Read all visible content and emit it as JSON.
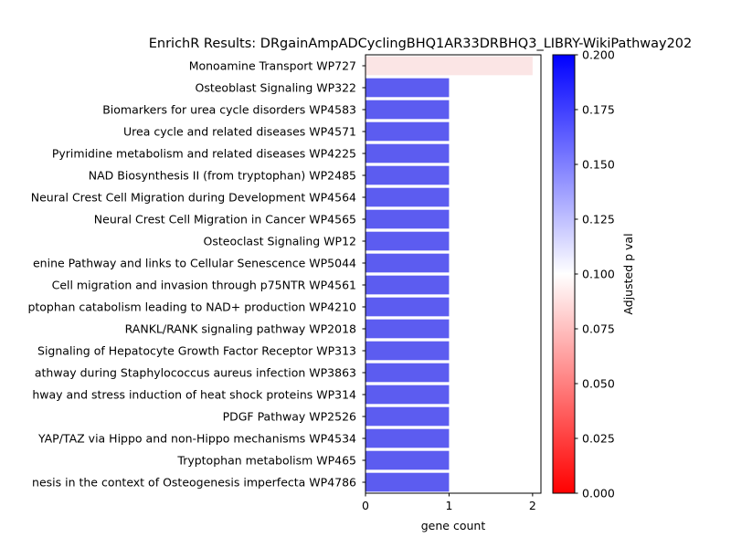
{
  "chart_data": {
    "type": "bar",
    "orientation": "horizontal",
    "title": "EnrichR Results: DRgainAmpADCyclingBHQ1AR33DRBHQ3_LIBRY-WikiPathway202",
    "xlabel": "gene count",
    "ylabel": "",
    "xlim": [
      0,
      2.1
    ],
    "x_ticks": [
      "0",
      "1",
      "2"
    ],
    "categories": [
      "Monoamine Transport WP727",
      "Osteoblast Signaling WP322",
      "Biomarkers for urea cycle disorders WP4583",
      "Urea cycle and related diseases WP4571",
      "Pyrimidine metabolism and related diseases WP4225",
      "NAD Biosynthesis II (from tryptophan) WP2485",
      "Neural Crest Cell Migration during Development WP4564",
      "Neural Crest Cell Migration in Cancer WP4565",
      "Osteoclast Signaling WP12",
      "enine Pathway and links to Cellular Senescence WP5044",
      "Cell migration and invasion through p75NTR WP4561",
      "ptophan catabolism leading to NAD+ production WP4210",
      "RANKL/RANK signaling pathway WP2018",
      "Signaling of Hepatocyte Growth Factor Receptor WP313",
      "athway during Staphylococcus aureus infection WP3863",
      "hway and stress induction of heat shock proteins WP314",
      "PDGF Pathway WP2526",
      "YAP/TAZ via Hippo and non-Hippo mechanisms WP4534",
      "Tryptophan metabolism WP465",
      "nesis in the context of Osteogenesis imperfecta WP4786"
    ],
    "values": [
      2,
      1,
      1,
      1,
      1,
      1,
      1,
      1,
      1,
      1,
      1,
      1,
      1,
      1,
      1,
      1,
      1,
      1,
      1,
      1
    ],
    "bar_colors": [
      "#fbe5e5",
      "#5c5cf0",
      "#5c5cf0",
      "#5c5cf0",
      "#5c5cf0",
      "#5c5cf0",
      "#5c5cf0",
      "#5c5cf0",
      "#5c5cf0",
      "#5c5cf0",
      "#5c5cf0",
      "#5c5cf0",
      "#5c5cf0",
      "#5c5cf0",
      "#5c5cf0",
      "#5c5cf0",
      "#5c5cf0",
      "#5c5cf0",
      "#5c5cf0",
      "#5c5cf0"
    ],
    "colorbar": {
      "label": "Adjusted p val",
      "range": [
        0,
        0.2
      ],
      "ticks": [
        "0.000",
        "0.025",
        "0.050",
        "0.075",
        "0.100",
        "0.125",
        "0.150",
        "0.175",
        "0.200"
      ],
      "colormap": [
        "#ff0000",
        "#ffffff",
        "#0000ff"
      ]
    },
    "grid": false,
    "legend": "none"
  }
}
